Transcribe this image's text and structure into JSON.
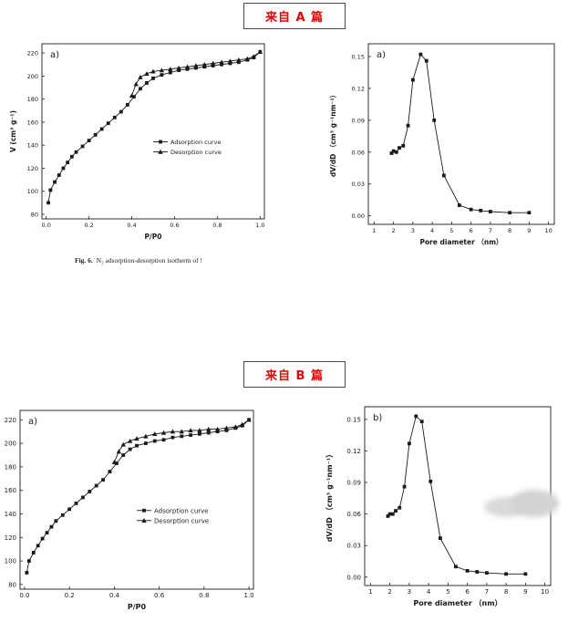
{
  "accent_red": "#e60000",
  "sections": [
    {
      "label": "来自 A 篇",
      "caption_prefix": "Fig. 6.",
      "caption_text": " N₂ adsorption-desorption isotherm of !"
    },
    {
      "label": "来自 B 篇"
    }
  ],
  "chart_data": [
    {
      "id": "paper-a-isotherm",
      "type": "line",
      "panel_label": "a)",
      "xlabel": "P/P0",
      "ylabel": "V (cm³ g⁻¹)",
      "xlim": [
        -0.02,
        1.02
      ],
      "ylim": [
        76,
        228
      ],
      "xticks": [
        0.0,
        0.2,
        0.4,
        0.6,
        0.8,
        1.0
      ],
      "yticks": [
        80,
        100,
        120,
        140,
        160,
        180,
        200,
        220
      ],
      "legend": [
        "Adsorption curve",
        "Desorption curve"
      ],
      "series": [
        {
          "name": "Adsorption curve",
          "marker": "square",
          "x": [
            0.01,
            0.02,
            0.04,
            0.06,
            0.08,
            0.1,
            0.12,
            0.14,
            0.17,
            0.2,
            0.23,
            0.26,
            0.29,
            0.32,
            0.35,
            0.38,
            0.41,
            0.44,
            0.47,
            0.5,
            0.54,
            0.58,
            0.62,
            0.66,
            0.7,
            0.74,
            0.78,
            0.82,
            0.86,
            0.9,
            0.94,
            0.97,
            1.0
          ],
          "y": [
            90,
            101,
            108,
            114,
            120,
            125,
            130,
            134,
            139,
            144,
            149,
            154,
            159,
            164,
            169,
            175,
            182,
            189,
            194,
            198,
            201,
            203,
            205,
            206,
            207,
            208,
            209,
            210,
            211,
            212,
            214,
            216,
            221
          ]
        },
        {
          "name": "Desorption curve",
          "marker": "triangle",
          "x": [
            1.0,
            0.97,
            0.94,
            0.9,
            0.86,
            0.82,
            0.78,
            0.74,
            0.7,
            0.66,
            0.62,
            0.58,
            0.54,
            0.5,
            0.47,
            0.44,
            0.42,
            0.4
          ],
          "y": [
            221,
            217,
            215,
            214,
            213,
            212,
            211,
            210,
            209,
            208,
            207,
            206,
            205,
            204,
            202,
            199,
            193,
            183
          ]
        }
      ]
    },
    {
      "id": "paper-a-pore-distribution",
      "type": "line",
      "panel_label": "a)",
      "xlabel": "Pore diameter （nm）",
      "ylabel": "dV/dD （cm³ g⁻¹nm⁻¹）",
      "xlim": [
        0.7,
        10.3
      ],
      "ylim": [
        -0.008,
        0.162
      ],
      "xticks": [
        1,
        2,
        3,
        4,
        5,
        6,
        7,
        8,
        9,
        10
      ],
      "yticks": [
        0.0,
        0.03,
        0.06,
        0.09,
        0.12,
        0.15
      ],
      "series": [
        {
          "name": "dV/dD",
          "marker": "square",
          "x": [
            1.9,
            2.0,
            2.15,
            2.3,
            2.5,
            2.75,
            3.0,
            3.4,
            3.7,
            4.1,
            4.6,
            5.4,
            6.0,
            6.5,
            7.0,
            8.0,
            9.0
          ],
          "y": [
            0.059,
            0.061,
            0.06,
            0.064,
            0.066,
            0.085,
            0.128,
            0.152,
            0.146,
            0.09,
            0.038,
            0.01,
            0.006,
            0.005,
            0.004,
            0.003,
            0.003
          ]
        }
      ]
    },
    {
      "id": "paper-b-isotherm",
      "type": "line",
      "panel_label": "a)",
      "xlabel": "P/P0",
      "ylabel": "V (cm³ g⁻¹)",
      "xlim": [
        -0.02,
        1.02
      ],
      "ylim": [
        76,
        228
      ],
      "xticks": [
        0.0,
        0.2,
        0.4,
        0.6,
        0.8,
        1.0
      ],
      "yticks": [
        80,
        100,
        120,
        140,
        160,
        180,
        200,
        220
      ],
      "legend": [
        "Adsorption curve",
        "Desorption curve"
      ],
      "series": [
        {
          "name": "Adsorption curve",
          "marker": "square",
          "x": [
            0.01,
            0.02,
            0.04,
            0.06,
            0.08,
            0.1,
            0.12,
            0.14,
            0.17,
            0.2,
            0.23,
            0.26,
            0.29,
            0.32,
            0.35,
            0.38,
            0.41,
            0.44,
            0.47,
            0.5,
            0.54,
            0.58,
            0.62,
            0.66,
            0.7,
            0.74,
            0.78,
            0.82,
            0.86,
            0.9,
            0.94,
            0.97,
            1.0
          ],
          "y": [
            90,
            100,
            107,
            113,
            119,
            124,
            129,
            134,
            139,
            144,
            149,
            154,
            159,
            164,
            169,
            176,
            183,
            190,
            195,
            198,
            200,
            202,
            203,
            205,
            206,
            207,
            208,
            209,
            210,
            211,
            213,
            215,
            220
          ]
        },
        {
          "name": "Desorption curve",
          "marker": "triangle",
          "x": [
            1.0,
            0.97,
            0.94,
            0.9,
            0.86,
            0.82,
            0.78,
            0.74,
            0.7,
            0.66,
            0.62,
            0.58,
            0.54,
            0.5,
            0.47,
            0.44,
            0.42,
            0.4
          ],
          "y": [
            220,
            216,
            214,
            213,
            212,
            212,
            211,
            211,
            210,
            210,
            209,
            208,
            206,
            204,
            202,
            199,
            193,
            184
          ]
        }
      ]
    },
    {
      "id": "paper-b-pore-distribution",
      "type": "line",
      "panel_label": "b)",
      "xlabel": "Pore diameter （nm）",
      "ylabel": "dV/dD （cm³ g⁻¹nm⁻¹）",
      "xlim": [
        0.7,
        10.3
      ],
      "ylim": [
        -0.008,
        0.162
      ],
      "xticks": [
        1,
        2,
        3,
        4,
        5,
        6,
        7,
        8,
        9,
        10
      ],
      "yticks": [
        0.0,
        0.03,
        0.06,
        0.09,
        0.12,
        0.15
      ],
      "series": [
        {
          "name": "dV/dD",
          "marker": "square",
          "x": [
            1.9,
            2.0,
            2.15,
            2.3,
            2.5,
            2.75,
            3.0,
            3.35,
            3.65,
            4.1,
            4.6,
            5.4,
            6.0,
            6.5,
            7.0,
            8.0,
            9.0
          ],
          "y": [
            0.058,
            0.06,
            0.06,
            0.063,
            0.066,
            0.086,
            0.127,
            0.153,
            0.148,
            0.091,
            0.037,
            0.01,
            0.006,
            0.005,
            0.004,
            0.003,
            0.003
          ]
        }
      ]
    }
  ]
}
